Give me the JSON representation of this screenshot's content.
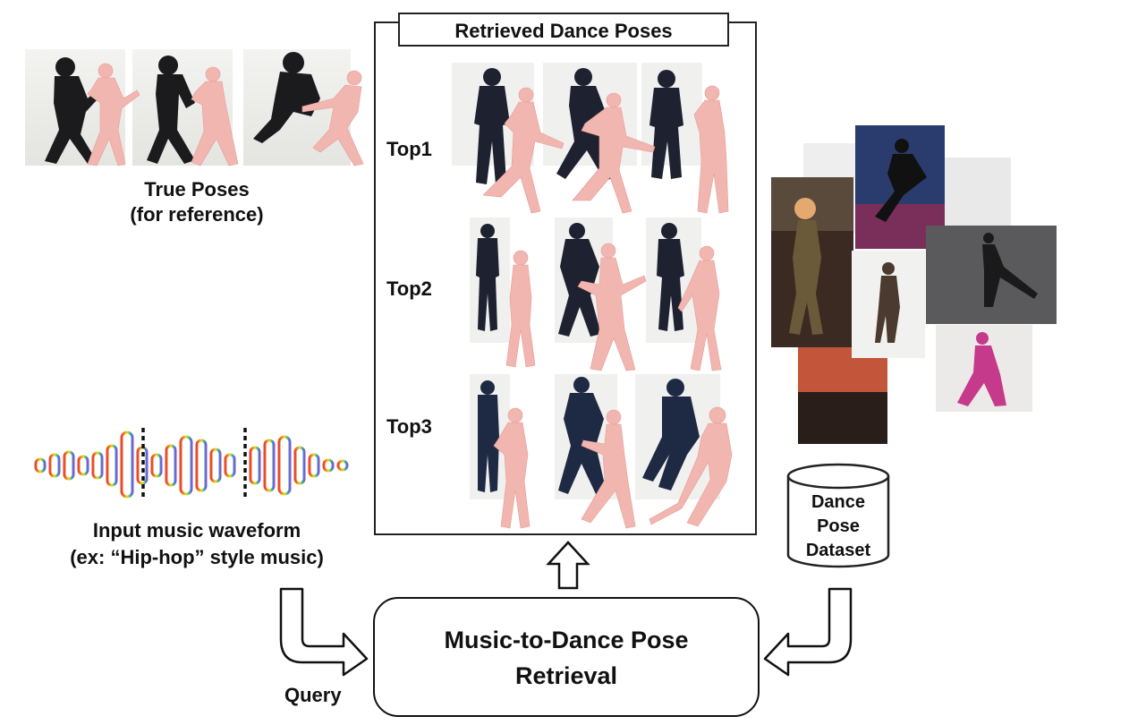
{
  "true_poses": {
    "line1": "True Poses",
    "line2": "(for reference)"
  },
  "retrieved": {
    "title": "Retrieved Dance Poses",
    "ranks": [
      {
        "label": "Top1"
      },
      {
        "label": "Top2"
      },
      {
        "label": "Top3"
      }
    ]
  },
  "waveform": {
    "line1": "Input music waveform",
    "line2": "(ex: “Hip-hop” style music)"
  },
  "query_label": "Query",
  "retrieval_box": {
    "line1": "Music-to-Dance Pose",
    "line2": "Retrieval"
  },
  "dataset": {
    "line1": "Dance",
    "line2": "Pose",
    "line3": "Dataset"
  },
  "colors": {
    "mesh": "#f2b6b0",
    "dancer_dark": "#1b1b1e",
    "waveform_gradient": [
      "#e8452b",
      "#f59a12",
      "#f2d21a",
      "#b9e02a",
      "#4dbb8c",
      "#3f8fd6",
      "#7b5ec8"
    ]
  }
}
